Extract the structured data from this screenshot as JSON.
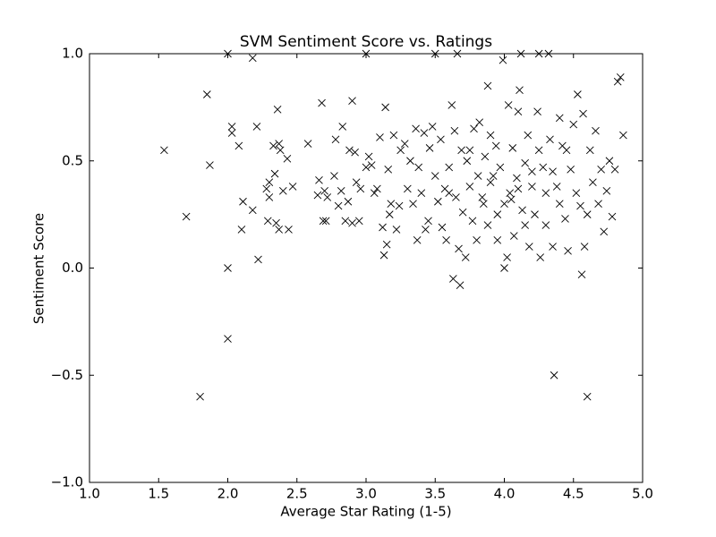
{
  "chart_data": {
    "type": "scatter",
    "title": "SVM Sentiment Score vs. Ratings",
    "x_label": "Average Star Rating (1-5)",
    "y_label": "Sentiment Score",
    "color": "#000000",
    "marker": "x",
    "xlim": [
      1.0,
      5.0
    ],
    "ylim": [
      -1.0,
      1.0
    ],
    "xticks": [
      {
        "value": 1.0,
        "label": "1.0"
      },
      {
        "value": 1.5,
        "label": "1.5"
      },
      {
        "value": 2.0,
        "label": "2.0"
      },
      {
        "value": 2.5,
        "label": "2.5"
      },
      {
        "value": 3.0,
        "label": "3.0"
      },
      {
        "value": 3.5,
        "label": "3.5"
      },
      {
        "value": 4.0,
        "label": "4.0"
      },
      {
        "value": 4.5,
        "label": "4.5"
      },
      {
        "value": 5.0,
        "label": "5.0"
      }
    ],
    "yticks": [
      {
        "value": -1.0,
        "label": "−1.0"
      },
      {
        "value": -0.5,
        "label": "−0.5"
      },
      {
        "value": 0.0,
        "label": "0.0"
      },
      {
        "value": 0.5,
        "label": "0.5"
      },
      {
        "value": 1.0,
        "label": "1.0"
      }
    ],
    "x": [
      1.54,
      1.7,
      1.8,
      1.85,
      1.87,
      2.0,
      2.0,
      2.0,
      2.03,
      2.03,
      2.08,
      2.1,
      2.11,
      2.18,
      2.18,
      2.21,
      2.22,
      2.28,
      2.29,
      2.3,
      2.3,
      2.33,
      2.34,
      2.35,
      2.36,
      2.37,
      2.37,
      2.38,
      2.4,
      2.43,
      2.44,
      2.47,
      2.58,
      2.65,
      2.66,
      2.68,
      2.69,
      2.7,
      2.71,
      2.72,
      2.77,
      2.78,
      2.8,
      2.82,
      2.83,
      2.85,
      2.87,
      2.88,
      2.9,
      2.9,
      2.92,
      2.93,
      2.95,
      2.96,
      3.0,
      3.0,
      3.02,
      3.04,
      3.06,
      3.08,
      3.1,
      3.12,
      3.13,
      3.14,
      3.15,
      3.16,
      3.17,
      3.18,
      3.2,
      3.22,
      3.24,
      3.25,
      3.28,
      3.3,
      3.32,
      3.34,
      3.36,
      3.37,
      3.38,
      3.4,
      3.42,
      3.43,
      3.45,
      3.46,
      3.48,
      3.5,
      3.5,
      3.52,
      3.54,
      3.55,
      3.57,
      3.58,
      3.6,
      3.62,
      3.63,
      3.64,
      3.65,
      3.66,
      3.67,
      3.68,
      3.69,
      3.7,
      3.72,
      3.73,
      3.75,
      3.77,
      3.78,
      3.8,
      3.81,
      3.82,
      3.84,
      3.86,
      3.88,
      3.88,
      3.9,
      3.92,
      3.94,
      3.95,
      3.97,
      3.99,
      4.0,
      4.0,
      4.02,
      4.03,
      4.04,
      4.06,
      4.07,
      4.09,
      4.1,
      4.11,
      4.12,
      4.13,
      4.15,
      4.17,
      4.18,
      4.2,
      4.22,
      4.24,
      4.25,
      4.26,
      4.28,
      4.3,
      4.32,
      4.33,
      4.35,
      4.36,
      4.38,
      4.4,
      4.42,
      4.44,
      4.46,
      4.48,
      4.5,
      4.52,
      4.53,
      4.55,
      4.56,
      4.57,
      4.58,
      4.6,
      4.62,
      4.64,
      4.66,
      4.68,
      4.7,
      4.72,
      4.74,
      4.76,
      4.78,
      4.8,
      4.82,
      4.84,
      4.86,
      4.1,
      4.05,
      4.2,
      4.3,
      4.4,
      3.9,
      3.75,
      3.6,
      4.45,
      4.15,
      3.85,
      4.35,
      4.25,
      3.95,
      4.6
    ],
    "values": [
      0.55,
      0.24,
      -0.6,
      0.81,
      0.48,
      1.0,
      0.0,
      -0.33,
      0.66,
      0.63,
      0.57,
      0.18,
      0.31,
      0.98,
      0.27,
      0.66,
      0.04,
      0.37,
      0.22,
      0.4,
      0.33,
      0.57,
      0.44,
      0.21,
      0.74,
      0.18,
      0.58,
      0.55,
      0.36,
      0.51,
      0.18,
      0.38,
      0.58,
      0.34,
      0.41,
      0.77,
      0.22,
      0.36,
      0.22,
      0.33,
      0.43,
      0.6,
      0.29,
      0.36,
      0.66,
      0.22,
      0.31,
      0.55,
      0.78,
      0.21,
      0.54,
      0.4,
      0.22,
      0.37,
      1.0,
      0.47,
      0.52,
      0.48,
      0.35,
      0.37,
      0.61,
      0.19,
      0.06,
      0.75,
      0.11,
      0.46,
      0.25,
      0.3,
      0.62,
      0.18,
      0.29,
      0.55,
      0.58,
      0.37,
      0.5,
      0.3,
      0.65,
      0.13,
      0.47,
      0.35,
      0.63,
      0.18,
      0.22,
      0.56,
      0.66,
      1.0,
      0.43,
      0.31,
      0.6,
      0.19,
      0.37,
      0.13,
      0.47,
      0.76,
      -0.05,
      0.64,
      0.33,
      1.0,
      0.09,
      -0.08,
      0.55,
      0.26,
      0.05,
      0.5,
      0.38,
      0.22,
      0.65,
      0.13,
      0.43,
      0.68,
      0.33,
      0.52,
      0.85,
      0.2,
      0.62,
      0.43,
      0.57,
      0.13,
      0.47,
      0.97,
      0.0,
      0.3,
      0.05,
      0.76,
      0.35,
      0.56,
      0.15,
      0.42,
      0.73,
      0.83,
      1.0,
      0.27,
      0.49,
      0.62,
      0.1,
      0.38,
      0.25,
      0.73,
      1.0,
      0.05,
      0.47,
      0.2,
      1.0,
      0.6,
      0.1,
      -0.5,
      0.38,
      0.7,
      0.57,
      0.23,
      0.08,
      0.46,
      0.67,
      0.35,
      0.81,
      0.29,
      -0.03,
      0.72,
      0.1,
      -0.6,
      0.55,
      0.4,
      0.64,
      0.3,
      0.46,
      0.17,
      0.36,
      0.5,
      0.24,
      0.46,
      0.87,
      0.89,
      0.62,
      0.37,
      0.32,
      0.45,
      0.35,
      0.3,
      0.4,
      0.55,
      0.35,
      0.55,
      0.2,
      0.3,
      0.45,
      0.55,
      0.25,
      0.25
    ]
  }
}
